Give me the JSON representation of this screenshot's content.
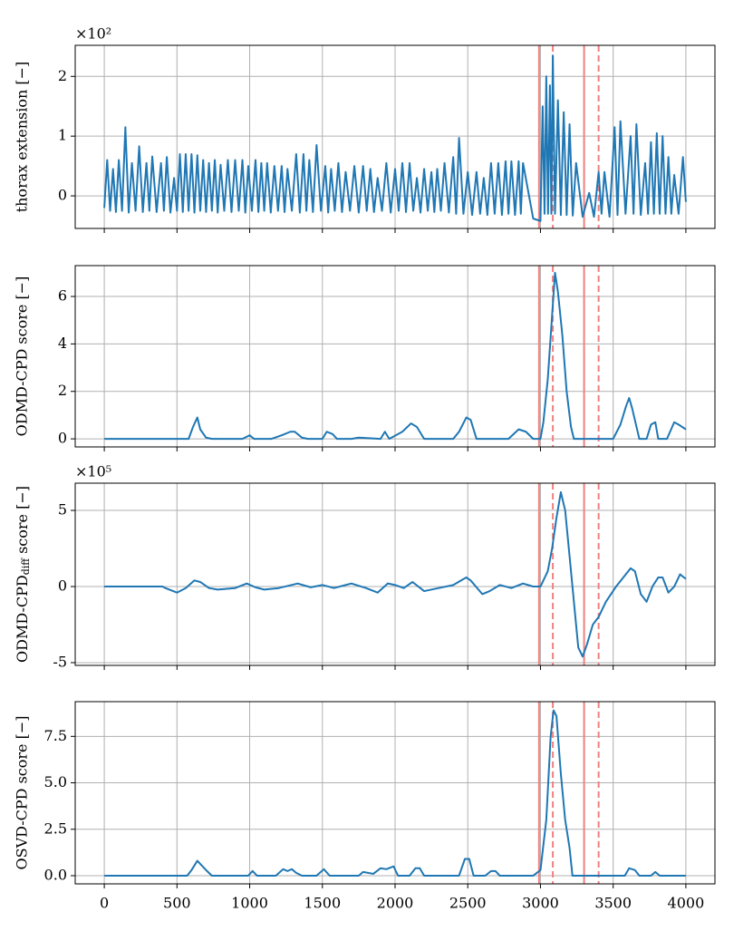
{
  "chart_data": [
    {
      "type": "line",
      "ylabel": "thorax extension [−]",
      "offset_label": "×10²",
      "xlim": [
        -200,
        4200
      ],
      "xticks": [
        0,
        500,
        1000,
        1500,
        2000,
        2500,
        3000,
        3500,
        4000
      ],
      "show_xtick_labels": false,
      "ylim": [
        -0.545,
        2.52
      ],
      "yticks": [
        0,
        1,
        2
      ],
      "grid": true,
      "vlines": [
        {
          "x": 2990,
          "style": "solid"
        },
        {
          "x": 3085,
          "style": "dashed"
        },
        {
          "x": 3300,
          "style": "solid"
        },
        {
          "x": 3400,
          "style": "dashed"
        }
      ],
      "vline_color": "#f08080",
      "x": [
        0,
        20,
        40,
        60,
        80,
        100,
        122,
        145,
        168,
        190,
        215,
        240,
        265,
        290,
        310,
        330,
        360,
        390,
        410,
        430,
        455,
        480,
        500,
        520,
        540,
        560,
        580,
        600,
        620,
        640,
        660,
        680,
        700,
        720,
        740,
        760,
        780,
        800,
        825,
        850,
        875,
        900,
        925,
        950,
        970,
        990,
        1015,
        1040,
        1060,
        1080,
        1100,
        1120,
        1145,
        1170,
        1195,
        1220,
        1240,
        1260,
        1290,
        1320,
        1345,
        1370,
        1390,
        1410,
        1435,
        1460,
        1490,
        1520,
        1540,
        1560,
        1585,
        1610,
        1635,
        1660,
        1690,
        1720,
        1750,
        1780,
        1805,
        1830,
        1855,
        1880,
        1910,
        1940,
        1970,
        2000,
        2025,
        2050,
        2075,
        2100,
        2125,
        2150,
        2175,
        2200,
        2225,
        2250,
        2270,
        2290,
        2315,
        2340,
        2370,
        2400,
        2420,
        2440,
        2470,
        2500,
        2530,
        2560,
        2585,
        2610,
        2635,
        2660,
        2685,
        2710,
        2735,
        2760,
        2780,
        2800,
        2825,
        2850,
        2865,
        2880,
        2950,
        3000,
        3015,
        3028,
        3040,
        3052,
        3065,
        3075,
        3085,
        3100,
        3120,
        3140,
        3160,
        3180,
        3200,
        3222,
        3245,
        3290,
        3335,
        3368,
        3400,
        3420,
        3440,
        3475,
        3510,
        3530,
        3550,
        3585,
        3620,
        3640,
        3660,
        3690,
        3720,
        3740,
        3760,
        3780,
        3800,
        3820,
        3840,
        3860,
        3880,
        3900,
        3920,
        3950,
        3980,
        4000
      ],
      "series": [
        {
          "color": "#1f77b4",
          "values": [
            -0.2,
            0.6,
            -0.25,
            0.45,
            -0.27,
            0.6,
            -0.25,
            1.15,
            -0.28,
            0.55,
            -0.25,
            0.83,
            -0.27,
            0.55,
            -0.25,
            0.66,
            -0.27,
            0.55,
            -0.25,
            0.65,
            -0.28,
            0.3,
            -0.25,
            0.7,
            -0.27,
            0.7,
            -0.25,
            0.7,
            -0.28,
            0.68,
            -0.25,
            0.6,
            -0.27,
            0.55,
            -0.25,
            0.6,
            -0.28,
            0.52,
            -0.25,
            0.6,
            -0.27,
            0.6,
            -0.25,
            0.6,
            -0.28,
            0.5,
            -0.25,
            0.6,
            -0.27,
            0.55,
            -0.25,
            0.55,
            -0.28,
            0.5,
            -0.25,
            0.5,
            -0.27,
            0.45,
            -0.25,
            0.7,
            -0.28,
            0.7,
            -0.25,
            0.6,
            -0.27,
            0.85,
            -0.25,
            0.5,
            -0.28,
            0.45,
            -0.25,
            0.55,
            -0.27,
            0.4,
            -0.25,
            0.5,
            -0.28,
            0.5,
            -0.25,
            0.45,
            -0.27,
            0.3,
            -0.25,
            0.55,
            -0.28,
            0.45,
            -0.25,
            0.55,
            -0.27,
            0.55,
            -0.25,
            0.3,
            -0.28,
            0.45,
            -0.25,
            0.4,
            -0.27,
            0.45,
            -0.25,
            0.55,
            -0.28,
            0.65,
            -0.3,
            0.97,
            -0.3,
            0.4,
            -0.32,
            0.4,
            -0.3,
            0.3,
            -0.32,
            0.55,
            -0.3,
            0.55,
            -0.32,
            0.58,
            -0.3,
            0.58,
            -0.32,
            0.58,
            -0.3,
            0.55,
            -0.38,
            -0.42,
            1.5,
            -0.3,
            2.0,
            -0.3,
            1.85,
            -0.3,
            2.35,
            -0.3,
            1.6,
            -0.32,
            1.4,
            -0.32,
            1.2,
            -0.33,
            0.55,
            -0.35,
            0.05,
            -0.35,
            0.4,
            -0.3,
            0.4,
            -0.35,
            1.15,
            -0.32,
            1.25,
            -0.3,
            1.0,
            -0.3,
            1.2,
            -0.32,
            0.55,
            -0.3,
            0.9,
            -0.3,
            1.05,
            -0.3,
            1.0,
            -0.3,
            0.65,
            -0.3,
            0.35,
            -0.3,
            0.65,
            -0.1
          ]
        }
      ]
    },
    {
      "type": "line",
      "ylabel": "ODMD-CPD score [−]",
      "xlim": [
        -200,
        4200
      ],
      "xticks": [
        0,
        500,
        1000,
        1500,
        2000,
        2500,
        3000,
        3500,
        4000
      ],
      "show_xtick_labels": false,
      "ylim": [
        -0.34,
        7.3
      ],
      "yticks": [
        0,
        2,
        4,
        6
      ],
      "grid": true,
      "vlines": [
        {
          "x": 2990,
          "style": "solid"
        },
        {
          "x": 3085,
          "style": "dashed"
        },
        {
          "x": 3300,
          "style": "solid"
        },
        {
          "x": 3400,
          "style": "dashed"
        }
      ],
      "vline_color": "#f08080",
      "x": [
        0,
        580,
        610,
        640,
        660,
        700,
        740,
        950,
        1000,
        1030,
        1150,
        1220,
        1280,
        1310,
        1360,
        1400,
        1500,
        1530,
        1570,
        1600,
        1700,
        1750,
        1900,
        1930,
        1960,
        2050,
        2110,
        2150,
        2200,
        2400,
        2440,
        2490,
        2520,
        2560,
        2780,
        2850,
        2900,
        2950,
        3000,
        3020,
        3050,
        3080,
        3100,
        3120,
        3150,
        3180,
        3210,
        3230,
        3350,
        3500,
        3550,
        3590,
        3610,
        3630,
        3680,
        3730,
        3760,
        3790,
        3810,
        3870,
        3920,
        3950,
        4000
      ],
      "series": [
        {
          "color": "#1f77b4",
          "values": [
            0,
            0,
            0.5,
            0.9,
            0.4,
            0.05,
            0,
            0,
            0.15,
            0,
            0,
            0.15,
            0.3,
            0.3,
            0.05,
            0,
            0,
            0.3,
            0.2,
            0,
            0,
            0.05,
            0,
            0.3,
            0,
            0.3,
            0.65,
            0.5,
            0,
            0,
            0.3,
            0.9,
            0.8,
            0,
            0,
            0.4,
            0.3,
            0,
            0,
            0.7,
            2.5,
            5.2,
            7.0,
            6.2,
            4.4,
            2.0,
            0.5,
            0,
            0,
            0,
            0.6,
            1.4,
            1.72,
            1.3,
            0,
            0,
            0.6,
            0.7,
            0,
            0,
            0.7,
            0.6,
            0.4
          ]
        }
      ]
    },
    {
      "type": "line",
      "ylabel_parts": [
        {
          "text": "ODMD-CPD"
        },
        {
          "text": "diff",
          "sub": true
        },
        {
          "text": "score [−]"
        }
      ],
      "offset_label": "×10⁵",
      "xlim": [
        -200,
        4200
      ],
      "xticks": [
        0,
        500,
        1000,
        1500,
        2000,
        2500,
        3000,
        3500,
        4000
      ],
      "show_xtick_labels": false,
      "ylim": [
        -5.18,
        6.79
      ],
      "yticks": [
        -5,
        0,
        5
      ],
      "grid": true,
      "vlines": [
        {
          "x": 2990,
          "style": "solid"
        },
        {
          "x": 3085,
          "style": "dashed"
        },
        {
          "x": 3300,
          "style": "solid"
        },
        {
          "x": 3400,
          "style": "dashed"
        }
      ],
      "vline_color": "#f08080",
      "x": [
        0,
        400,
        420,
        500,
        560,
        620,
        660,
        720,
        780,
        900,
        980,
        1040,
        1100,
        1200,
        1330,
        1420,
        1500,
        1580,
        1700,
        1800,
        1880,
        1950,
        2000,
        2060,
        2120,
        2200,
        2300,
        2400,
        2490,
        2520,
        2600,
        2650,
        2720,
        2800,
        2880,
        2950,
        3000,
        3050,
        3080,
        3110,
        3140,
        3170,
        3200,
        3240,
        3260,
        3290,
        3320,
        3360,
        3400,
        3450,
        3520,
        3570,
        3620,
        3650,
        3690,
        3730,
        3770,
        3810,
        3840,
        3880,
        3920,
        3960,
        4000
      ],
      "series": [
        {
          "color": "#1f77b4",
          "values": [
            0,
            0,
            -0.1,
            -0.4,
            -0.1,
            0.4,
            0.3,
            -0.1,
            -0.2,
            -0.1,
            0.2,
            -0.05,
            -0.2,
            -0.1,
            0.2,
            -0.05,
            0.1,
            -0.1,
            0.2,
            -0.1,
            -0.4,
            0.2,
            0.1,
            -0.1,
            0.3,
            -0.3,
            -0.1,
            0.1,
            0.6,
            0.4,
            -0.5,
            -0.3,
            0.1,
            -0.1,
            0.2,
            0,
            0,
            1.0,
            2.5,
            4.5,
            6.2,
            5.0,
            2.0,
            -2.0,
            -4.0,
            -4.6,
            -3.8,
            -2.5,
            -2.0,
            -1.0,
            0.0,
            0.6,
            1.2,
            1.0,
            -0.5,
            -1.0,
            0.0,
            0.6,
            0.6,
            -0.4,
            0.0,
            0.8,
            0.5
          ]
        }
      ]
    },
    {
      "type": "line",
      "ylabel": "OSVD-CPD score [−]",
      "xlim": [
        -200,
        4200
      ],
      "xticks": [
        0,
        500,
        1000,
        1500,
        2000,
        2500,
        3000,
        3500,
        4000
      ],
      "show_xtick_labels": true,
      "ylim": [
        -0.44,
        9.37
      ],
      "yticks": [
        {
          "value": 0,
          "label": "0.0"
        },
        2.5,
        {
          "value": 5,
          "label": "5.0"
        },
        7.5
      ],
      "grid": true,
      "vlines": [
        {
          "x": 2990,
          "style": "solid"
        },
        {
          "x": 3085,
          "style": "dashed"
        },
        {
          "x": 3300,
          "style": "solid"
        },
        {
          "x": 3400,
          "style": "dashed"
        }
      ],
      "vline_color": "#f08080",
      "x": [
        0,
        570,
        600,
        640,
        700,
        740,
        990,
        1020,
        1050,
        1180,
        1230,
        1260,
        1290,
        1320,
        1360,
        1460,
        1510,
        1550,
        1750,
        1780,
        1850,
        1900,
        1940,
        1990,
        2020,
        2100,
        2140,
        2170,
        2200,
        2440,
        2480,
        2510,
        2540,
        2620,
        2660,
        2690,
        2720,
        2950,
        3000,
        3040,
        3070,
        3090,
        3110,
        3140,
        3170,
        3200,
        3220,
        3580,
        3610,
        3650,
        3680,
        3760,
        3790,
        3820,
        4000
      ],
      "series": [
        {
          "color": "#1f77b4",
          "values": [
            0,
            0,
            0.3,
            0.8,
            0.3,
            0,
            0,
            0.25,
            0,
            0,
            0.35,
            0.25,
            0.35,
            0.15,
            0,
            0,
            0.35,
            0,
            0,
            0.2,
            0.1,
            0.4,
            0.35,
            0.5,
            0,
            0,
            0.4,
            0.4,
            0,
            0,
            0.9,
            0.9,
            0,
            0,
            0.25,
            0.25,
            0,
            0,
            0.3,
            3.0,
            7.5,
            8.9,
            8.6,
            5.5,
            3.0,
            1.5,
            0,
            0,
            0.4,
            0.3,
            0,
            0,
            0.2,
            0,
            0
          ]
        }
      ]
    }
  ]
}
